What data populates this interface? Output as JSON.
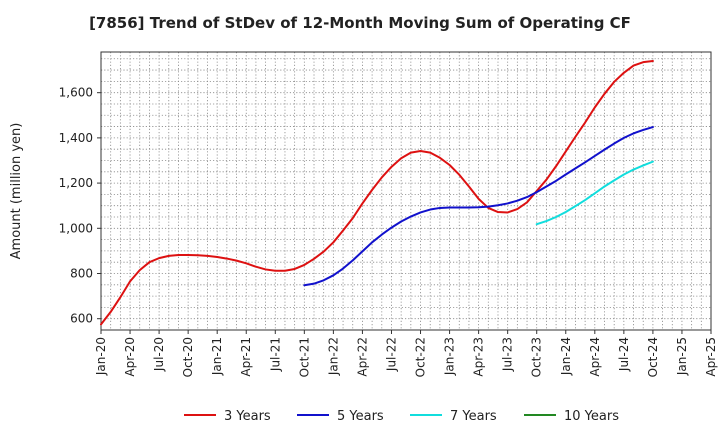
{
  "chart_data": {
    "type": "line",
    "title": "[7856]  Trend of StDev of 12-Month Moving Sum of Operating CF",
    "ylabel": "Amount (million yen)",
    "xlabel": "",
    "x_ticks": [
      "Jan-20",
      "Apr-20",
      "Jul-20",
      "Oct-20",
      "Jan-21",
      "Apr-21",
      "Jul-21",
      "Oct-21",
      "Jan-22",
      "Apr-22",
      "Jul-22",
      "Oct-22",
      "Jan-23",
      "Apr-23",
      "Jul-23",
      "Oct-23",
      "Jan-24",
      "Apr-24",
      "Jul-24",
      "Oct-24",
      "Jan-25",
      "Apr-25"
    ],
    "x_range": [
      "2020-01",
      "2025-04"
    ],
    "ylim": [
      550,
      1780
    ],
    "y_ticks": [
      600,
      800,
      1000,
      1200,
      1400,
      1600
    ],
    "y_tick_labels": [
      "600",
      "800",
      "1,000",
      "1,200",
      "1,400",
      "1,600"
    ],
    "grid": true,
    "legend_position": "bottom",
    "series": [
      {
        "name": "3 Years",
        "color": "#dd1111",
        "x": [
          "2020-01",
          "2020-02",
          "2020-03",
          "2020-04",
          "2020-05",
          "2020-06",
          "2020-07",
          "2020-08",
          "2020-09",
          "2020-10",
          "2020-11",
          "2020-12",
          "2021-01",
          "2021-02",
          "2021-03",
          "2021-04",
          "2021-05",
          "2021-06",
          "2021-07",
          "2021-08",
          "2021-09",
          "2021-10",
          "2021-11",
          "2021-12",
          "2022-01",
          "2022-02",
          "2022-03",
          "2022-04",
          "2022-05",
          "2022-06",
          "2022-07",
          "2022-08",
          "2022-09",
          "2022-10",
          "2022-11",
          "2022-12",
          "2023-01",
          "2023-02",
          "2023-03",
          "2023-04",
          "2023-05",
          "2023-06",
          "2023-07",
          "2023-08",
          "2023-09",
          "2023-10",
          "2023-11",
          "2023-12",
          "2024-01",
          "2024-02",
          "2024-03",
          "2024-04",
          "2024-05",
          "2024-06",
          "2024-07",
          "2024-08",
          "2024-09",
          "2024-10"
        ],
        "values": [
          575,
          630,
          695,
          765,
          815,
          850,
          868,
          878,
          882,
          882,
          881,
          878,
          873,
          866,
          857,
          845,
          830,
          818,
          812,
          812,
          820,
          838,
          865,
          897,
          938,
          990,
          1045,
          1110,
          1170,
          1225,
          1272,
          1310,
          1335,
          1342,
          1335,
          1312,
          1280,
          1237,
          1185,
          1130,
          1090,
          1072,
          1070,
          1085,
          1115,
          1165,
          1215,
          1275,
          1340,
          1405,
          1468,
          1535,
          1595,
          1648,
          1688,
          1720,
          1735,
          1740
        ]
      },
      {
        "name": "5 Years",
        "color": "#1111cc",
        "x": [
          "2021-10",
          "2021-11",
          "2021-12",
          "2022-01",
          "2022-02",
          "2022-03",
          "2022-04",
          "2022-05",
          "2022-06",
          "2022-07",
          "2022-08",
          "2022-09",
          "2022-10",
          "2022-11",
          "2022-12",
          "2023-01",
          "2023-02",
          "2023-03",
          "2023-04",
          "2023-05",
          "2023-06",
          "2023-07",
          "2023-08",
          "2023-09",
          "2023-10",
          "2023-11",
          "2023-12",
          "2024-01",
          "2024-02",
          "2024-03",
          "2024-04",
          "2024-05",
          "2024-06",
          "2024-07",
          "2024-08",
          "2024-09",
          "2024-10"
        ],
        "values": [
          748,
          755,
          770,
          792,
          822,
          858,
          898,
          938,
          972,
          1003,
          1030,
          1052,
          1070,
          1083,
          1090,
          1092,
          1092,
          1092,
          1093,
          1096,
          1102,
          1110,
          1122,
          1138,
          1160,
          1185,
          1210,
          1238,
          1265,
          1292,
          1320,
          1348,
          1375,
          1400,
          1420,
          1435,
          1448
        ]
      },
      {
        "name": "7 Years",
        "color": "#11dddd",
        "x": [
          "2023-10",
          "2023-11",
          "2023-12",
          "2024-01",
          "2024-02",
          "2024-03",
          "2024-04",
          "2024-05",
          "2024-06",
          "2024-07",
          "2024-08",
          "2024-09",
          "2024-10"
        ],
        "values": [
          1018,
          1032,
          1050,
          1072,
          1098,
          1125,
          1155,
          1185,
          1212,
          1238,
          1260,
          1278,
          1295
        ]
      },
      {
        "name": "10 Years",
        "color": "#228822",
        "x": [],
        "values": []
      }
    ]
  }
}
